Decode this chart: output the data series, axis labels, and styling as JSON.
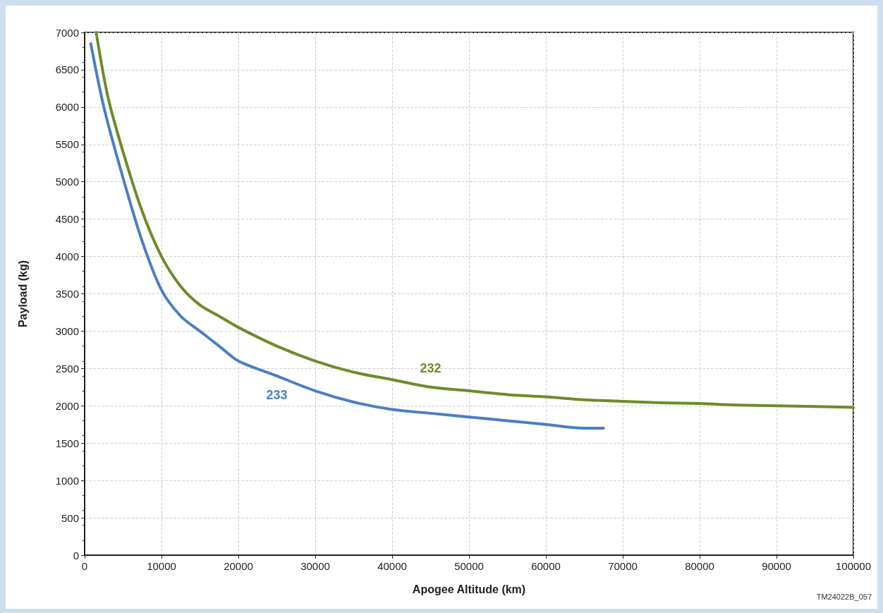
{
  "chart_data": {
    "type": "line",
    "xlabel": "Apogee Altitude (km)",
    "ylabel": "Payload (kg)",
    "xlim": [
      0,
      100000
    ],
    "ylim": [
      0,
      7000
    ],
    "xticks": [
      0,
      10000,
      20000,
      30000,
      40000,
      50000,
      60000,
      70000,
      80000,
      90000,
      100000
    ],
    "yticks": [
      0,
      500,
      1000,
      1500,
      2000,
      2500,
      3000,
      3500,
      4000,
      4500,
      5000,
      5500,
      6000,
      6500,
      7000
    ],
    "grid": true,
    "legend": false,
    "marker": "none",
    "line_style": "solid",
    "annotations": [
      "TM24022B_057"
    ],
    "series": [
      {
        "name": "232",
        "color": "#6f8a2a",
        "x": [
          1500,
          3000,
          5000,
          7500,
          10000,
          12500,
          15000,
          17500,
          20000,
          25000,
          30000,
          35000,
          40000,
          45000,
          50000,
          55000,
          60000,
          65000,
          70000,
          75000,
          80000,
          85000,
          90000,
          95000,
          100000
        ],
        "values": [
          7000,
          6150,
          5400,
          4600,
          4000,
          3600,
          3350,
          3200,
          3050,
          2800,
          2600,
          2450,
          2350,
          2250,
          2200,
          2150,
          2120,
          2080,
          2060,
          2040,
          2030,
          2010,
          2000,
          1990,
          1980
        ]
      },
      {
        "name": "233",
        "color": "#4a7fc1",
        "x": [
          800,
          2500,
          5000,
          7500,
          10000,
          12500,
          15000,
          17500,
          20000,
          25000,
          30000,
          35000,
          40000,
          45000,
          50000,
          55000,
          60000,
          65000,
          67500
        ],
        "values": [
          6850,
          6000,
          5050,
          4200,
          3550,
          3200,
          3000,
          2800,
          2600,
          2400,
          2200,
          2050,
          1950,
          1900,
          1850,
          1800,
          1750,
          1700,
          1700
        ]
      }
    ]
  }
}
